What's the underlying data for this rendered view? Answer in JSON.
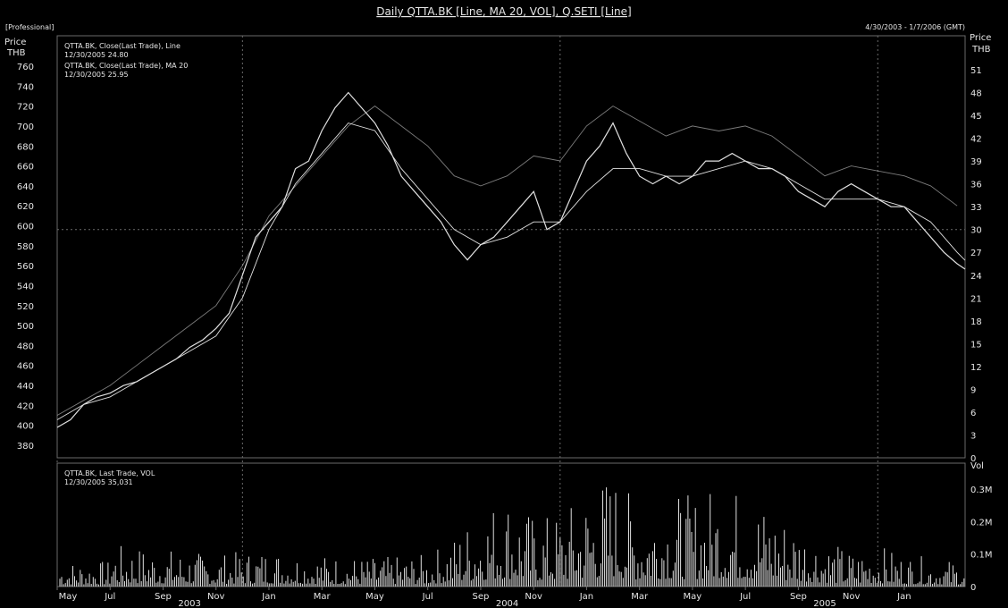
{
  "header": {
    "title": "Daily QTTA.BK [Line, MA 20, VOL], Q.SETI [Line]",
    "mode": "[Professional]",
    "date_range": "4/30/2003 - 1/7/2006 (GMT)"
  },
  "legend": {
    "line1": "QTTA.BK, Close(Last Trade), Line",
    "line1_value": "12/30/2005 24.80",
    "line2": "QTTA.BK, Close(Last Trade), MA 20",
    "line2_value": "12/30/2005 25.95",
    "vol_line1": "QTTA.BK, Last Trade, VOL",
    "vol_line2": "12/30/2005 35,031"
  },
  "axes": {
    "left_label_1": "Price",
    "left_label_2": "THB",
    "right_label_1": "Price",
    "right_label_2": "THB",
    "vol_label": "Vol",
    "left_ticks": [
      "760",
      "740",
      "720",
      "700",
      "680",
      "660",
      "640",
      "620",
      "600",
      "580",
      "560",
      "540",
      "520",
      "500",
      "480",
      "460",
      "440",
      "420",
      "400",
      "380"
    ],
    "right_ticks": [
      "51",
      "48",
      "45",
      "42",
      "39",
      "36",
      "33",
      "30",
      "27",
      "24",
      "21",
      "18",
      "15",
      "12",
      "9",
      "6",
      "3",
      "0"
    ],
    "vol_ticks": [
      "0.3M",
      "0.2M",
      "0.1M",
      "0"
    ],
    "x_ticks": [
      "May",
      "Jul",
      "Sep",
      "Nov",
      "Jan",
      "Mar",
      "May",
      "Jul",
      "Sep",
      "Nov",
      "Jan",
      "Mar",
      "May",
      "Jul",
      "Sep",
      "Nov",
      "Jan"
    ],
    "year_ticks": [
      "2003",
      "2004",
      "2005"
    ]
  },
  "colors": {
    "background": "#000000",
    "series": "#e0e0e0",
    "grid": "#6a6a6a"
  },
  "chart_data": {
    "type": "line",
    "x_unit": "months since May 2003",
    "price_ylim": [
      0,
      51
    ],
    "setindex_ylim": [
      380,
      760
    ],
    "vol_ylim": [
      0,
      0.38
    ],
    "series": [
      {
        "name": "QTTA.BK, Close(Last Trade), Line",
        "axis": "right",
        "points": [
          [
            0,
            4
          ],
          [
            0.5,
            5
          ],
          [
            1,
            7
          ],
          [
            1.5,
            8
          ],
          [
            2,
            8.5
          ],
          [
            2.5,
            9.5
          ],
          [
            3,
            10
          ],
          [
            3.5,
            11
          ],
          [
            4,
            12
          ],
          [
            4.5,
            13
          ],
          [
            5,
            14.5
          ],
          [
            5.5,
            15.5
          ],
          [
            6,
            17
          ],
          [
            6.5,
            19
          ],
          [
            7,
            24
          ],
          [
            7.5,
            29
          ],
          [
            8,
            31
          ],
          [
            8.5,
            33
          ],
          [
            9,
            38
          ],
          [
            9.5,
            39
          ],
          [
            10,
            43
          ],
          [
            10.5,
            46
          ],
          [
            11,
            48
          ],
          [
            11.5,
            46
          ],
          [
            12,
            44
          ],
          [
            12.5,
            41
          ],
          [
            13,
            37
          ],
          [
            13.5,
            35
          ],
          [
            14,
            33
          ],
          [
            14.5,
            31
          ],
          [
            15,
            28
          ],
          [
            15.5,
            26
          ],
          [
            16,
            28
          ],
          [
            16.5,
            29
          ],
          [
            17,
            31
          ],
          [
            17.5,
            33
          ],
          [
            18,
            35
          ],
          [
            18.5,
            30
          ],
          [
            19,
            31
          ],
          [
            19.5,
            35
          ],
          [
            20,
            39
          ],
          [
            20.5,
            41
          ],
          [
            21,
            44
          ],
          [
            21.5,
            40
          ],
          [
            22,
            37
          ],
          [
            22.5,
            36
          ],
          [
            23,
            37
          ],
          [
            23.5,
            36
          ],
          [
            24,
            37
          ],
          [
            24.5,
            39
          ],
          [
            25,
            39
          ],
          [
            25.5,
            40
          ],
          [
            26,
            39
          ],
          [
            26.5,
            38
          ],
          [
            27,
            38
          ],
          [
            27.5,
            37
          ],
          [
            28,
            35
          ],
          [
            28.5,
            34
          ],
          [
            29,
            33
          ],
          [
            29.5,
            35
          ],
          [
            30,
            36
          ],
          [
            30.5,
            35
          ],
          [
            31,
            34
          ],
          [
            31.5,
            33
          ],
          [
            32,
            33
          ],
          [
            32.5,
            31
          ],
          [
            33,
            29
          ],
          [
            33.5,
            27
          ],
          [
            34,
            25.5
          ],
          [
            34.3,
            24.8
          ]
        ]
      },
      {
        "name": "QTTA.BK, Close(Last Trade), MA 20",
        "axis": "right",
        "points": [
          [
            0,
            5
          ],
          [
            1,
            7
          ],
          [
            2,
            8
          ],
          [
            3,
            10
          ],
          [
            4,
            12
          ],
          [
            5,
            14
          ],
          [
            6,
            16
          ],
          [
            7,
            21
          ],
          [
            8,
            30
          ],
          [
            9,
            36
          ],
          [
            10,
            40
          ],
          [
            11,
            44
          ],
          [
            12,
            43
          ],
          [
            13,
            38
          ],
          [
            14,
            34
          ],
          [
            15,
            30
          ],
          [
            16,
            28
          ],
          [
            17,
            29
          ],
          [
            18,
            31
          ],
          [
            19,
            31
          ],
          [
            20,
            35
          ],
          [
            21,
            38
          ],
          [
            22,
            38
          ],
          [
            23,
            37
          ],
          [
            24,
            37
          ],
          [
            25,
            38
          ],
          [
            26,
            39
          ],
          [
            27,
            38
          ],
          [
            28,
            36
          ],
          [
            29,
            34
          ],
          [
            30,
            34
          ],
          [
            31,
            34
          ],
          [
            32,
            33
          ],
          [
            33,
            31
          ],
          [
            34,
            27
          ],
          [
            34.3,
            25.95
          ]
        ]
      },
      {
        "name": "Q.SETI, Line",
        "axis": "left",
        "points": [
          [
            0,
            410
          ],
          [
            1,
            425
          ],
          [
            2,
            440
          ],
          [
            3,
            460
          ],
          [
            4,
            480
          ],
          [
            5,
            500
          ],
          [
            6,
            520
          ],
          [
            7,
            560
          ],
          [
            8,
            610
          ],
          [
            9,
            640
          ],
          [
            10,
            670
          ],
          [
            11,
            700
          ],
          [
            12,
            720
          ],
          [
            13,
            700
          ],
          [
            14,
            680
          ],
          [
            15,
            650
          ],
          [
            16,
            640
          ],
          [
            17,
            650
          ],
          [
            18,
            670
          ],
          [
            19,
            665
          ],
          [
            20,
            700
          ],
          [
            21,
            720
          ],
          [
            22,
            705
          ],
          [
            23,
            690
          ],
          [
            24,
            700
          ],
          [
            25,
            695
          ],
          [
            26,
            700
          ],
          [
            27,
            690
          ],
          [
            28,
            670
          ],
          [
            29,
            650
          ],
          [
            30,
            660
          ],
          [
            31,
            655
          ],
          [
            32,
            650
          ],
          [
            33,
            640
          ],
          [
            34,
            620
          ]
        ]
      }
    ],
    "volume_unit": "M",
    "volume_peaks": [
      [
        2,
        0.13
      ],
      [
        4,
        0.12
      ],
      [
        6,
        0.1
      ],
      [
        8,
        0.12
      ],
      [
        10,
        0.1
      ],
      [
        12,
        0.09
      ],
      [
        14,
        0.1
      ],
      [
        15,
        0.16
      ],
      [
        16,
        0.25
      ],
      [
        17,
        0.3
      ],
      [
        18,
        0.22
      ],
      [
        19,
        0.23
      ],
      [
        20,
        0.3
      ],
      [
        21,
        0.37
      ],
      [
        22,
        0.25
      ],
      [
        23,
        0.3
      ],
      [
        24,
        0.28
      ],
      [
        25,
        0.33
      ],
      [
        26,
        0.3
      ],
      [
        27,
        0.25
      ],
      [
        28,
        0.2
      ],
      [
        29,
        0.15
      ],
      [
        30,
        0.11
      ],
      [
        31,
        0.13
      ],
      [
        32,
        0.1
      ],
      [
        33,
        0.09
      ],
      [
        34,
        0.08
      ]
    ]
  }
}
